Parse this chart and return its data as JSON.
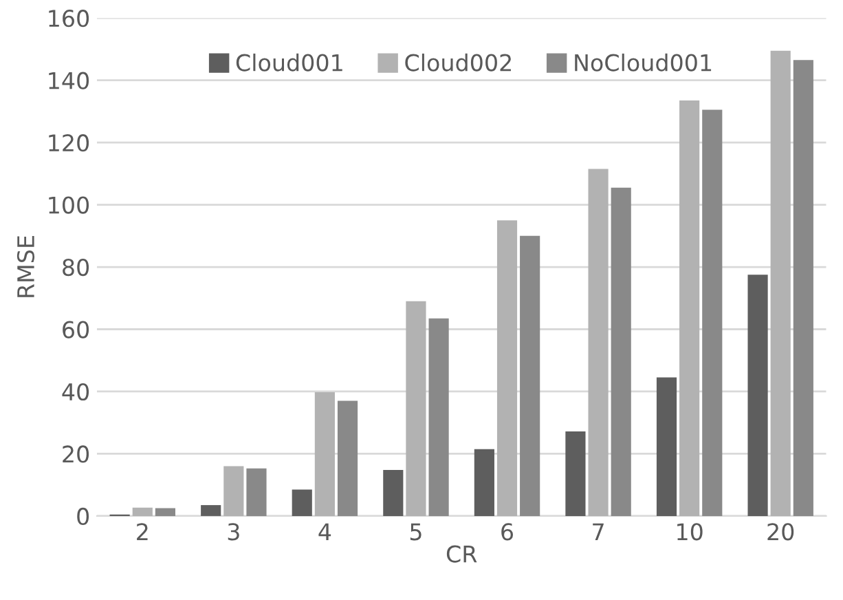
{
  "chart_data": {
    "type": "bar",
    "xlabel": "CR",
    "ylabel": "RMSE",
    "categories": [
      "2",
      "3",
      "4",
      "5",
      "6",
      "7",
      "10",
      "20"
    ],
    "series": [
      {
        "name": "Cloud001",
        "color": "#5e5e5e",
        "values": [
          0.5,
          3.5,
          8.5,
          14.8,
          21.5,
          27.2,
          44.5,
          77.5
        ]
      },
      {
        "name": "Cloud002",
        "color": "#b2b2b2",
        "values": [
          2.7,
          16,
          39.8,
          69,
          95,
          111.5,
          133.5,
          149.5
        ]
      },
      {
        "name": "NoCloud001",
        "color": "#898989",
        "values": [
          2.5,
          15.3,
          37,
          63.5,
          90,
          105.5,
          130.5,
          146.5
        ]
      }
    ],
    "ylim": [
      0,
      160
    ],
    "yticks": [
      0,
      20,
      40,
      60,
      80,
      100,
      120,
      140,
      160
    ],
    "grid": "y",
    "legend": "top"
  }
}
